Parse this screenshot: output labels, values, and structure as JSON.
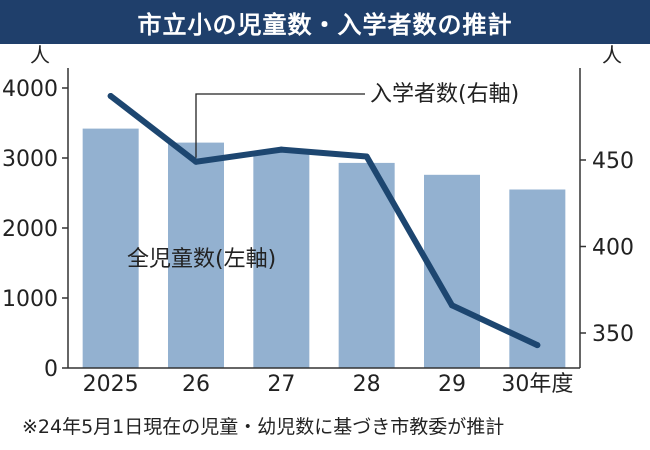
{
  "title": "市立小の児童数・入学者数の推計",
  "footnote": "※24年5月1日現在の児童・幼児数に基づき市教委が推計",
  "chart_data": {
    "type": "bar",
    "categories": [
      "2025",
      "26",
      "27",
      "28",
      "29",
      "30年度"
    ],
    "series": [
      {
        "name": "全児童数(左軸)",
        "type": "bar",
        "axis": "left",
        "values": [
          3420,
          3220,
          3080,
          2930,
          2760,
          2550
        ]
      },
      {
        "name": "入学者数(右軸)",
        "type": "line",
        "axis": "right",
        "values": [
          487,
          449,
          456,
          452,
          366,
          343
        ]
      }
    ],
    "y_left": {
      "unit": "人",
      "range": [
        0,
        4000
      ],
      "ticks": [
        0,
        1000,
        2000,
        3000,
        4000
      ]
    },
    "y_right": {
      "unit": "人",
      "range": [
        330,
        490
      ],
      "ticks": [
        350,
        400,
        450
      ]
    },
    "colors": {
      "bar": "#93b1d0",
      "line": "#1d4670",
      "title_bg": "#1f3f6b"
    }
  }
}
